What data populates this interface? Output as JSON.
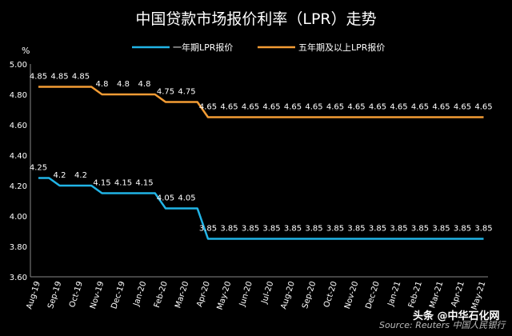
{
  "chart_data": {
    "type": "line",
    "title": "中国贷款市场报价利率（LPR）走势",
    "ylabel": "%",
    "ylim": [
      3.6,
      5.0
    ],
    "yticks": [
      "3.60",
      "3.80",
      "4.00",
      "4.20",
      "4.40",
      "4.60",
      "4.80",
      "5.00"
    ],
    "grid": false,
    "legend_position": "top",
    "x": [
      "Aug-19",
      "Sep-19",
      "Oct-19",
      "Nov-19",
      "Dec-19",
      "Jan-20",
      "Feb-20",
      "Mar-20",
      "Apr-20",
      "May-20",
      "Jun-20",
      "Jul-20",
      "Aug-20",
      "Sep-20",
      "Oct-20",
      "Nov-20",
      "Dec-20",
      "Jan-21",
      "Feb-21",
      "Mar-21",
      "Apr-21",
      "May-21"
    ],
    "series": [
      {
        "name": "一年期LPR报价",
        "color": "#21B4E6",
        "values": [
          4.25,
          4.2,
          4.2,
          4.15,
          4.15,
          4.15,
          4.05,
          4.05,
          3.85,
          3.85,
          3.85,
          3.85,
          3.85,
          3.85,
          3.85,
          3.85,
          3.85,
          3.85,
          3.85,
          3.85,
          3.85,
          3.85
        ],
        "labels": [
          "4.25",
          "4.2",
          "4.2",
          "4.15",
          "4.15",
          "4.15",
          "4.05",
          "4.05",
          "3.85",
          "3.85",
          "3.85",
          "3.85",
          "3.85",
          "3.85",
          "3.85",
          "3.85",
          "3.85",
          "3.85",
          "3.85",
          "3.85",
          "3.85",
          "3.85"
        ]
      },
      {
        "name": "五年期及以上LPR报价",
        "color": "#F39C34",
        "values": [
          4.85,
          4.85,
          4.85,
          4.8,
          4.8,
          4.8,
          4.75,
          4.75,
          4.65,
          4.65,
          4.65,
          4.65,
          4.65,
          4.65,
          4.65,
          4.65,
          4.65,
          4.65,
          4.65,
          4.65,
          4.65,
          4.65
        ],
        "labels": [
          "4.85",
          "4.85",
          "4.85",
          "4.8",
          "4.8",
          "4.8",
          "4.75",
          "4.75",
          "4.65",
          "4.65",
          "4.65",
          "4.65",
          "4.65",
          "4.65",
          "4.65",
          "4.65",
          "4.65",
          "4.65",
          "4.65",
          "4.65",
          "4.65",
          "4.65"
        ]
      }
    ],
    "source": "Source: Reuters 中国人民银行",
    "watermark": "头条 @中华石化网"
  }
}
